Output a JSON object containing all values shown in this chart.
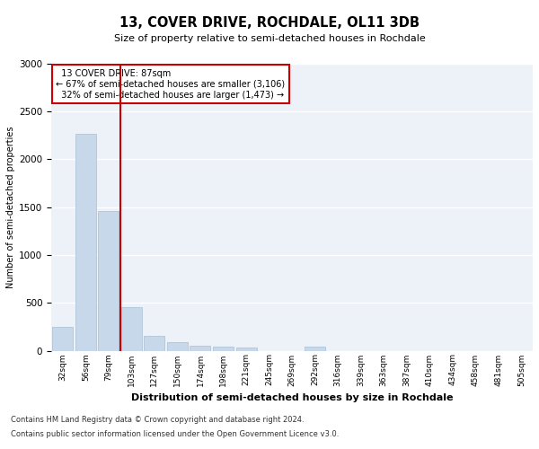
{
  "title": "13, COVER DRIVE, ROCHDALE, OL11 3DB",
  "subtitle": "Size of property relative to semi-detached houses in Rochdale",
  "xlabel": "Distribution of semi-detached houses by size in Rochdale",
  "ylabel": "Number of semi-detached properties",
  "footnote1": "Contains HM Land Registry data © Crown copyright and database right 2024.",
  "footnote2": "Contains public sector information licensed under the Open Government Licence v3.0.",
  "property_label": "13 COVER DRIVE: 87sqm",
  "pct_smaller": 67,
  "count_smaller": 3106,
  "pct_larger": 32,
  "count_larger": 1473,
  "bar_color": "#c8d8eb",
  "bar_edge_color": "#a8bfd4",
  "highlight_color": "#cc0000",
  "annotation_box_color": "#cc0000",
  "background_color": "#ffffff",
  "plot_bg_color": "#edf2f9",
  "grid_color": "#ffffff",
  "categories": [
    "32sqm",
    "56sqm",
    "79sqm",
    "103sqm",
    "127sqm",
    "150sqm",
    "174sqm",
    "198sqm",
    "221sqm",
    "245sqm",
    "269sqm",
    "292sqm",
    "316sqm",
    "339sqm",
    "363sqm",
    "387sqm",
    "410sqm",
    "434sqm",
    "458sqm",
    "481sqm",
    "505sqm"
  ],
  "values": [
    245,
    2270,
    1460,
    455,
    160,
    90,
    55,
    40,
    35,
    0,
    0,
    45,
    0,
    0,
    0,
    0,
    0,
    0,
    0,
    0,
    0
  ],
  "ylim": [
    0,
    3000
  ],
  "yticks": [
    0,
    500,
    1000,
    1500,
    2000,
    2500,
    3000
  ],
  "property_bin_index": 2
}
